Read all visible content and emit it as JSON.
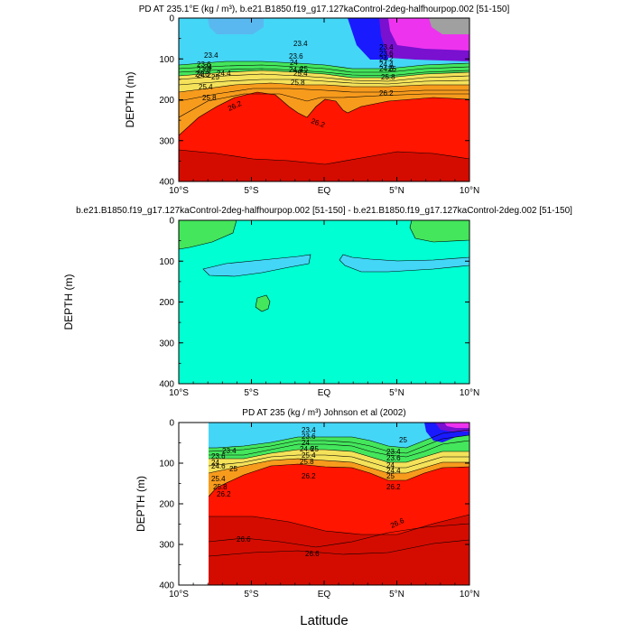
{
  "xlabel": "Latitude",
  "colors": {
    "cyan": "#44d6f7",
    "lightblue": "#5ab8f0",
    "aqua": "#00ffd2",
    "green": "#44e65c",
    "yellow": "#f4e25a",
    "orange": "#f79b1d",
    "red": "#ff1500",
    "darkred": "#d40c00",
    "magenta": "#ee33ee",
    "blue": "#1a1aff",
    "purple": "#7a10d0",
    "gray": "#a0a0a0"
  },
  "chart_data": [
    {
      "type": "heatmap",
      "title": "PD AT 235.1°E (kg / m³), b.e21.B1850.f19_g17.127kaControl-2deg-halfhourpop.002 [51-150]",
      "ylabel": "DEPTH (m)",
      "xlim": [
        -10,
        10
      ],
      "ylim": [
        400,
        0
      ],
      "x_ticks": [
        "10°S",
        "5°S",
        "EQ",
        "5°N",
        "10°N"
      ],
      "y_ticks": [
        "0",
        "100",
        "200",
        "300",
        "400"
      ],
      "contour_labels": [
        "23.4",
        "23.6",
        "23.8",
        "24",
        "24.2",
        "24.4",
        "24.6",
        "25",
        "25.4",
        "25.8",
        "26.2",
        "23.4",
        "23.6",
        "24",
        "24.6",
        "25",
        "25.4",
        "25.8",
        "26.2",
        "23.4",
        "23.6",
        "24.2",
        "24.4",
        "24.6",
        "25",
        "25.8",
        "26.2"
      ]
    },
    {
      "type": "heatmap",
      "title": "b.e21.B1850.f19_g17.127kaControl-2deg-halfhourpop.002 [51-150] - b.e21.B1850.f19_g17.127kaControl-2deg.002 [51-150]",
      "ylabel": "DEPTH (m)",
      "xlim": [
        -10,
        10
      ],
      "ylim": [
        400,
        0
      ],
      "x_ticks": [
        "10°S",
        "5°S",
        "EQ",
        "5°N",
        "10°N"
      ],
      "y_ticks": [
        "0",
        "100",
        "200",
        "300",
        "400"
      ]
    },
    {
      "type": "heatmap",
      "title": "PD AT 235 (kg / m³) Johnson et al (2002)",
      "ylabel": "DEPTH (m)",
      "xlim": [
        -10,
        10
      ],
      "ylim": [
        400,
        0
      ],
      "x_ticks": [
        "10°S",
        "5°S",
        "EQ",
        "5°N",
        "10°N"
      ],
      "y_ticks": [
        "0",
        "100",
        "200",
        "300",
        "400"
      ],
      "contour_labels": [
        "23.4",
        "23.6",
        "24",
        "24.6",
        "25",
        "25.4",
        "25.8",
        "26.2",
        "23.4",
        "23.6",
        "24",
        "24.6",
        "25",
        "25.4",
        "25.8",
        "26.2",
        "25",
        "23.4",
        "23.6",
        "24",
        "24.4",
        "25",
        "26.2",
        "26.6",
        "26.6",
        "26.6"
      ]
    }
  ]
}
